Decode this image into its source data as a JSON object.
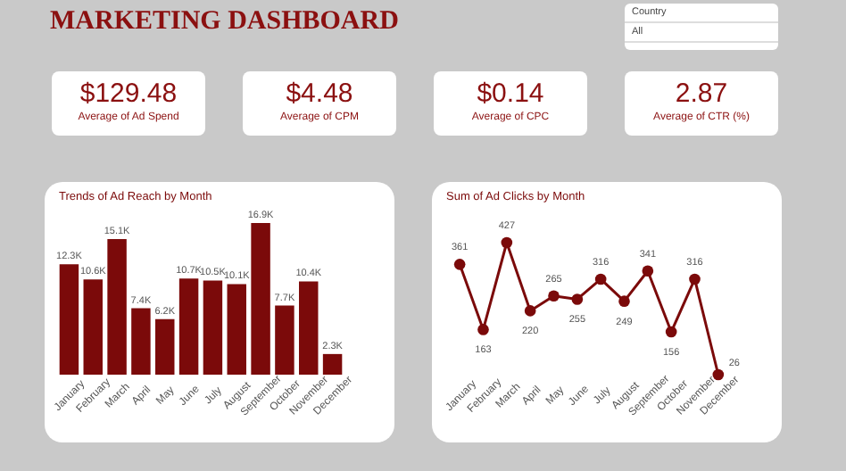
{
  "chart_data": [
    {
      "type": "other",
      "title": "MARKETING DASHBOARD",
      "categories": [
        "Average of Ad Spend",
        "Average of CPM",
        "Average of CPC",
        "Average of CTR (%)"
      ],
      "value_labels": [
        "$129.48",
        "$4.48",
        "$0.14",
        "2.87"
      ],
      "annotations": [
        "Country",
        "All"
      ]
    },
    {
      "type": "bar",
      "title": "Trends of Ad Reach by Month",
      "categories": [
        "January",
        "February",
        "March",
        "April",
        "May",
        "June",
        "July",
        "August",
        "September",
        "October",
        "November",
        "December"
      ],
      "values": [
        12300,
        10600,
        15100,
        7400,
        6200,
        10700,
        10500,
        10100,
        16900,
        7700,
        10400,
        2300
      ],
      "value_labels": [
        "12.3K",
        "10.6K",
        "15.1K",
        "7.4K",
        "6.2K",
        "10.7K",
        "10.5K",
        "10.1K",
        "16.9K",
        "7.7K",
        "10.4K",
        "2.3K"
      ],
      "color": "#7b0a0a"
    },
    {
      "type": "line",
      "title": "Sum of Ad Clicks by Month",
      "categories": [
        "January",
        "February",
        "March",
        "April",
        "May",
        "June",
        "July",
        "August",
        "September",
        "October",
        "November",
        "December"
      ],
      "values": [
        361,
        163,
        427,
        220,
        265,
        255,
        316,
        249,
        341,
        156,
        316,
        26
      ],
      "data_labels": true,
      "marker": "circle",
      "color": "#7b0a0a"
    }
  ]
}
